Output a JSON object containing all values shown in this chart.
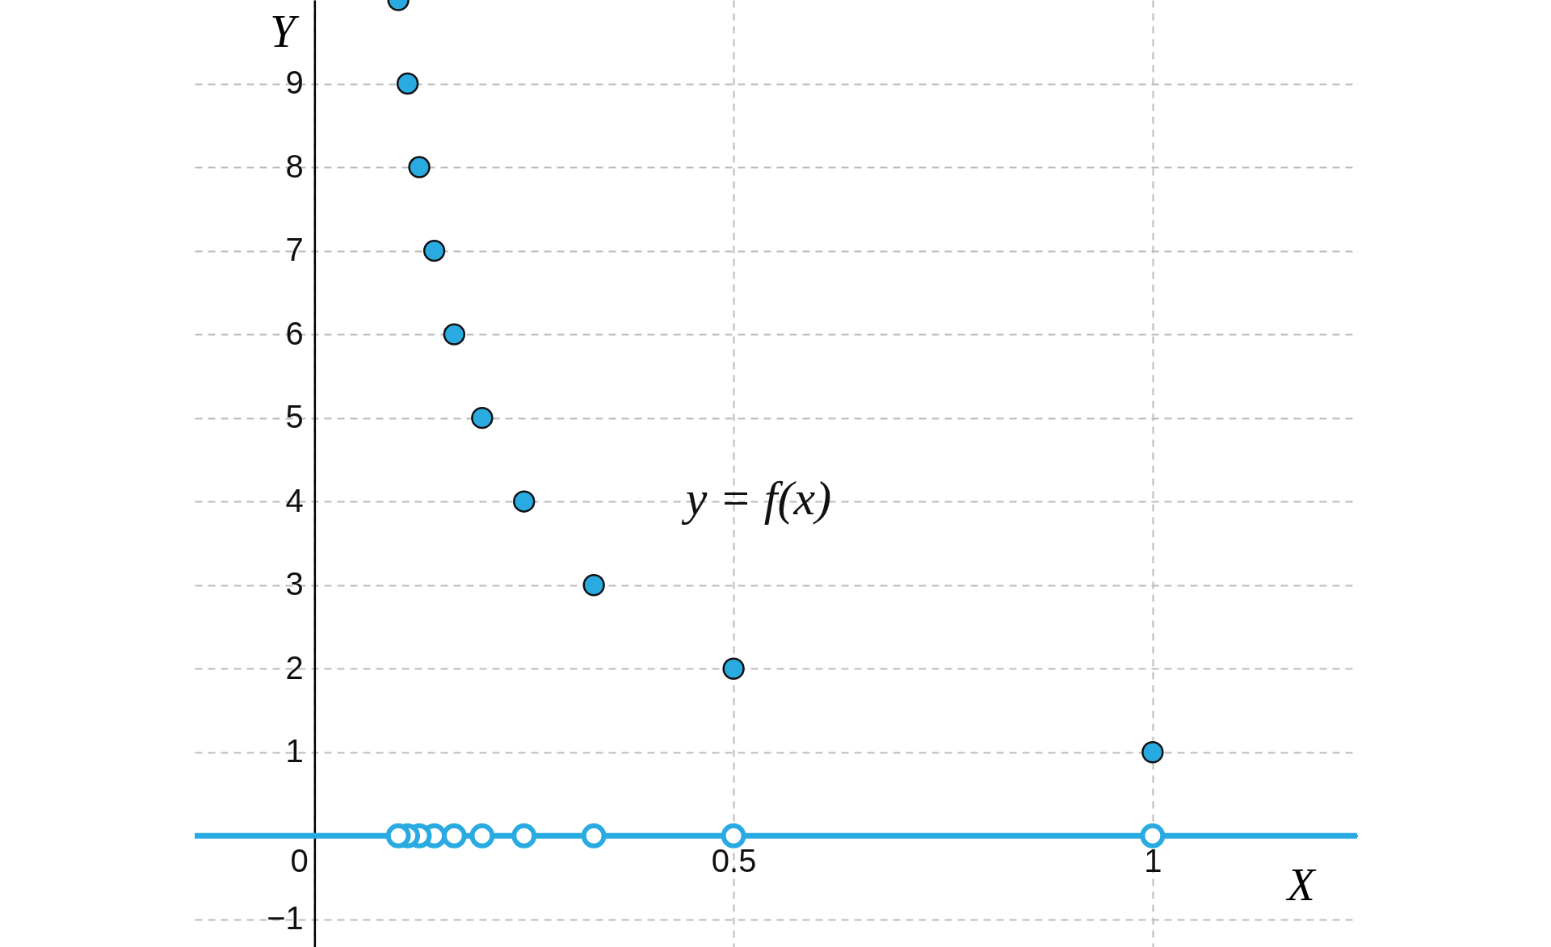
{
  "chart_data": {
    "type": "scatter",
    "xlabel": "X",
    "ylabel": "Y",
    "xlim": [
      -0.143,
      1.244
    ],
    "ylim": [
      -1.33,
      10
    ],
    "xticks": [
      0,
      0.5,
      1
    ],
    "yticks": [
      {
        "value": -1,
        "label": "−1"
      },
      1,
      2,
      3,
      4,
      5,
      6,
      7,
      8,
      9
    ],
    "grid": true,
    "annotations": [
      "y = f(x)"
    ],
    "series": [
      {
        "type": "line",
        "color": "#29abe2",
        "x": [
          -0.143,
          1.244
        ],
        "values": [
          0,
          0
        ]
      },
      {
        "color": "#29abe2",
        "marker": "circle",
        "x": [
          1,
          0.5,
          0.3333,
          0.25,
          0.2,
          0.1667,
          0.1429,
          0.125,
          0.1111,
          0.1
        ],
        "values": [
          1,
          2,
          3,
          4,
          5,
          6,
          7,
          8,
          9,
          10
        ]
      },
      {
        "color": "#ffffff",
        "marker": "circle",
        "x": [
          1,
          0.5,
          0.3333,
          0.25,
          0.2,
          0.1667,
          0.1429,
          0.125,
          0.1111,
          0.1
        ],
        "values": [
          0,
          0,
          0,
          0,
          0,
          0,
          0,
          0,
          0,
          0
        ]
      }
    ]
  }
}
